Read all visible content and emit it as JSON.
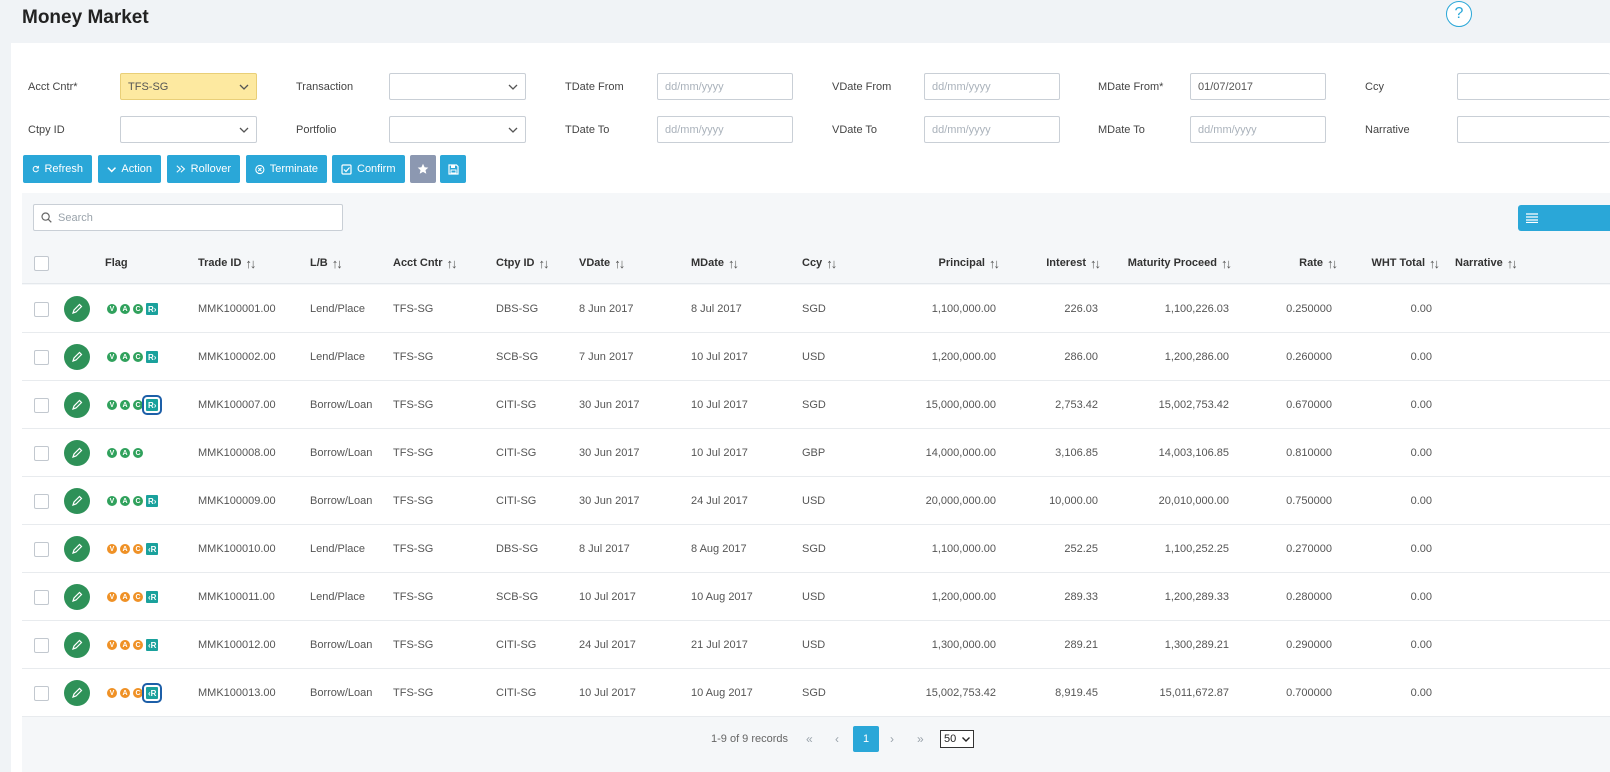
{
  "page": {
    "title": "Money Market",
    "help_label": "?"
  },
  "filters": {
    "acct_cntr": {
      "label": "Acct Cntr*",
      "value": "TFS-SG"
    },
    "transaction": {
      "label": "Transaction",
      "value": ""
    },
    "tdate_from": {
      "label": "TDate From",
      "placeholder": "dd/mm/yyyy"
    },
    "vdate_from": {
      "label": "VDate From",
      "placeholder": "dd/mm/yyyy"
    },
    "mdate_from": {
      "label": "MDate From*",
      "value": "01/07/2017"
    },
    "ccy": {
      "label": "Ccy",
      "value": ""
    },
    "ctpy_id": {
      "label": "Ctpy ID",
      "value": ""
    },
    "portfolio": {
      "label": "Portfolio",
      "value": ""
    },
    "tdate_to": {
      "label": "TDate To",
      "placeholder": "dd/mm/yyyy"
    },
    "vdate_to": {
      "label": "VDate To",
      "placeholder": "dd/mm/yyyy"
    },
    "mdate_to": {
      "label": "MDate To",
      "placeholder": "dd/mm/yyyy"
    },
    "narrative": {
      "label": "Narrative",
      "value": ""
    }
  },
  "toolbar": {
    "refresh": "Refresh",
    "action": "Action",
    "rollover": "Rollover",
    "terminate": "Terminate",
    "confirm": "Confirm"
  },
  "search": {
    "placeholder": "Search"
  },
  "table": {
    "headers": {
      "flag": "Flag",
      "trade_id": "Trade ID",
      "lb": "L/B",
      "acct_cntr": "Acct Cntr",
      "ctpy_id": "Ctpy ID",
      "vdate": "VDate",
      "mdate": "MDate",
      "ccy": "Ccy",
      "principal": "Principal",
      "interest": "Interest",
      "maturity_proceed": "Maturity Proceed",
      "rate": "Rate",
      "wht_total": "WHT Total",
      "narrative": "Narrative"
    },
    "sort_glyph": "↑↓",
    "rows": [
      {
        "flag_color": "g",
        "flags": [
          "V",
          "A",
          "C"
        ],
        "rbadge": "R›",
        "rbadge_boxed": false,
        "trade_id": "MMK100001.00",
        "lb": "Lend/Place",
        "acct_cntr": "TFS-SG",
        "ctpy_id": "DBS-SG",
        "vdate": "8 Jun 2017",
        "mdate": "8 Jul 2017",
        "ccy": "SGD",
        "principal": "1,100,000.00",
        "interest": "226.03",
        "maturity_proceed": "1,100,226.03",
        "rate": "0.250000",
        "wht_total": "0.00",
        "narrative": ""
      },
      {
        "flag_color": "g",
        "flags": [
          "V",
          "A",
          "C"
        ],
        "rbadge": "R›",
        "rbadge_boxed": false,
        "trade_id": "MMK100002.00",
        "lb": "Lend/Place",
        "acct_cntr": "TFS-SG",
        "ctpy_id": "SCB-SG",
        "vdate": "7 Jun 2017",
        "mdate": "10 Jul 2017",
        "ccy": "USD",
        "principal": "1,200,000.00",
        "interest": "286.00",
        "maturity_proceed": "1,200,286.00",
        "rate": "0.260000",
        "wht_total": "0.00",
        "narrative": ""
      },
      {
        "flag_color": "g",
        "flags": [
          "V",
          "A",
          "C"
        ],
        "rbadge": "R›",
        "rbadge_boxed": true,
        "trade_id": "MMK100007.00",
        "lb": "Borrow/Loan",
        "acct_cntr": "TFS-SG",
        "ctpy_id": "CITI-SG",
        "vdate": "30 Jun 2017",
        "mdate": "10 Jul 2017",
        "ccy": "SGD",
        "principal": "15,000,000.00",
        "interest": "2,753.42",
        "maturity_proceed": "15,002,753.42",
        "rate": "0.670000",
        "wht_total": "0.00",
        "narrative": ""
      },
      {
        "flag_color": "g",
        "flags": [
          "V",
          "A",
          "C"
        ],
        "rbadge": "",
        "rbadge_boxed": false,
        "trade_id": "MMK100008.00",
        "lb": "Borrow/Loan",
        "acct_cntr": "TFS-SG",
        "ctpy_id": "CITI-SG",
        "vdate": "30 Jun 2017",
        "mdate": "10 Jul 2017",
        "ccy": "GBP",
        "principal": "14,000,000.00",
        "interest": "3,106.85",
        "maturity_proceed": "14,003,106.85",
        "rate": "0.810000",
        "wht_total": "0.00",
        "narrative": ""
      },
      {
        "flag_color": "g",
        "flags": [
          "V",
          "A",
          "C"
        ],
        "rbadge": "R›",
        "rbadge_boxed": false,
        "trade_id": "MMK100009.00",
        "lb": "Borrow/Loan",
        "acct_cntr": "TFS-SG",
        "ctpy_id": "CITI-SG",
        "vdate": "30 Jun 2017",
        "mdate": "24 Jul 2017",
        "ccy": "USD",
        "principal": "20,000,000.00",
        "interest": "10,000.00",
        "maturity_proceed": "20,010,000.00",
        "rate": "0.750000",
        "wht_total": "0.00",
        "narrative": ""
      },
      {
        "flag_color": "o",
        "flags": [
          "V",
          "A",
          "C"
        ],
        "rbadge": "‹R",
        "rbadge_boxed": false,
        "trade_id": "MMK100010.00",
        "lb": "Lend/Place",
        "acct_cntr": "TFS-SG",
        "ctpy_id": "DBS-SG",
        "vdate": "8 Jul 2017",
        "mdate": "8 Aug 2017",
        "ccy": "SGD",
        "principal": "1,100,000.00",
        "interest": "252.25",
        "maturity_proceed": "1,100,252.25",
        "rate": "0.270000",
        "wht_total": "0.00",
        "narrative": ""
      },
      {
        "flag_color": "o",
        "flags": [
          "V",
          "A",
          "C"
        ],
        "rbadge": "‹R",
        "rbadge_boxed": false,
        "trade_id": "MMK100011.00",
        "lb": "Lend/Place",
        "acct_cntr": "TFS-SG",
        "ctpy_id": "SCB-SG",
        "vdate": "10 Jul 2017",
        "mdate": "10 Aug 2017",
        "ccy": "USD",
        "principal": "1,200,000.00",
        "interest": "289.33",
        "maturity_proceed": "1,200,289.33",
        "rate": "0.280000",
        "wht_total": "0.00",
        "narrative": ""
      },
      {
        "flag_color": "o",
        "flags": [
          "V",
          "A",
          "C"
        ],
        "rbadge": "‹R",
        "rbadge_boxed": false,
        "trade_id": "MMK100012.00",
        "lb": "Borrow/Loan",
        "acct_cntr": "TFS-SG",
        "ctpy_id": "CITI-SG",
        "vdate": "24 Jul 2017",
        "mdate": "21 Jul 2017",
        "ccy": "USD",
        "principal": "1,300,000.00",
        "interest": "289.21",
        "maturity_proceed": "1,300,289.21",
        "rate": "0.290000",
        "wht_total": "0.00",
        "narrative": ""
      },
      {
        "flag_color": "o",
        "flags": [
          "V",
          "A",
          "C"
        ],
        "rbadge": "‹R",
        "rbadge_boxed": true,
        "trade_id": "MMK100013.00",
        "lb": "Borrow/Loan",
        "acct_cntr": "TFS-SG",
        "ctpy_id": "CITI-SG",
        "vdate": "10 Jul 2017",
        "mdate": "10 Aug 2017",
        "ccy": "SGD",
        "principal": "15,002,753.42",
        "interest": "8,919.45",
        "maturity_proceed": "15,011,672.87",
        "rate": "0.700000",
        "wht_total": "0.00",
        "narrative": ""
      }
    ]
  },
  "pager": {
    "summary": "1-9 of 9 records",
    "first": "«",
    "prev": "‹",
    "next": "›",
    "last": "»",
    "current_page": "1",
    "page_size": "50"
  },
  "colors": {
    "accent": "#2aa7d8",
    "edit_green": "#2e9158",
    "flag_green": "#30a15c",
    "flag_orange": "#ef9126",
    "rbadge_teal": "#1aa19c",
    "highlight_field": "#fde9a0"
  },
  "icons": {
    "refresh": "refresh-icon",
    "action": "chevron-down-icon",
    "rollover": "fast-forward-icon",
    "terminate": "cancel-circle-icon",
    "confirm": "check-square-icon",
    "favorite": "star-icon",
    "save": "floppy-disk-icon",
    "search": "search-icon",
    "list": "list-icon",
    "edit": "pencil-icon"
  }
}
